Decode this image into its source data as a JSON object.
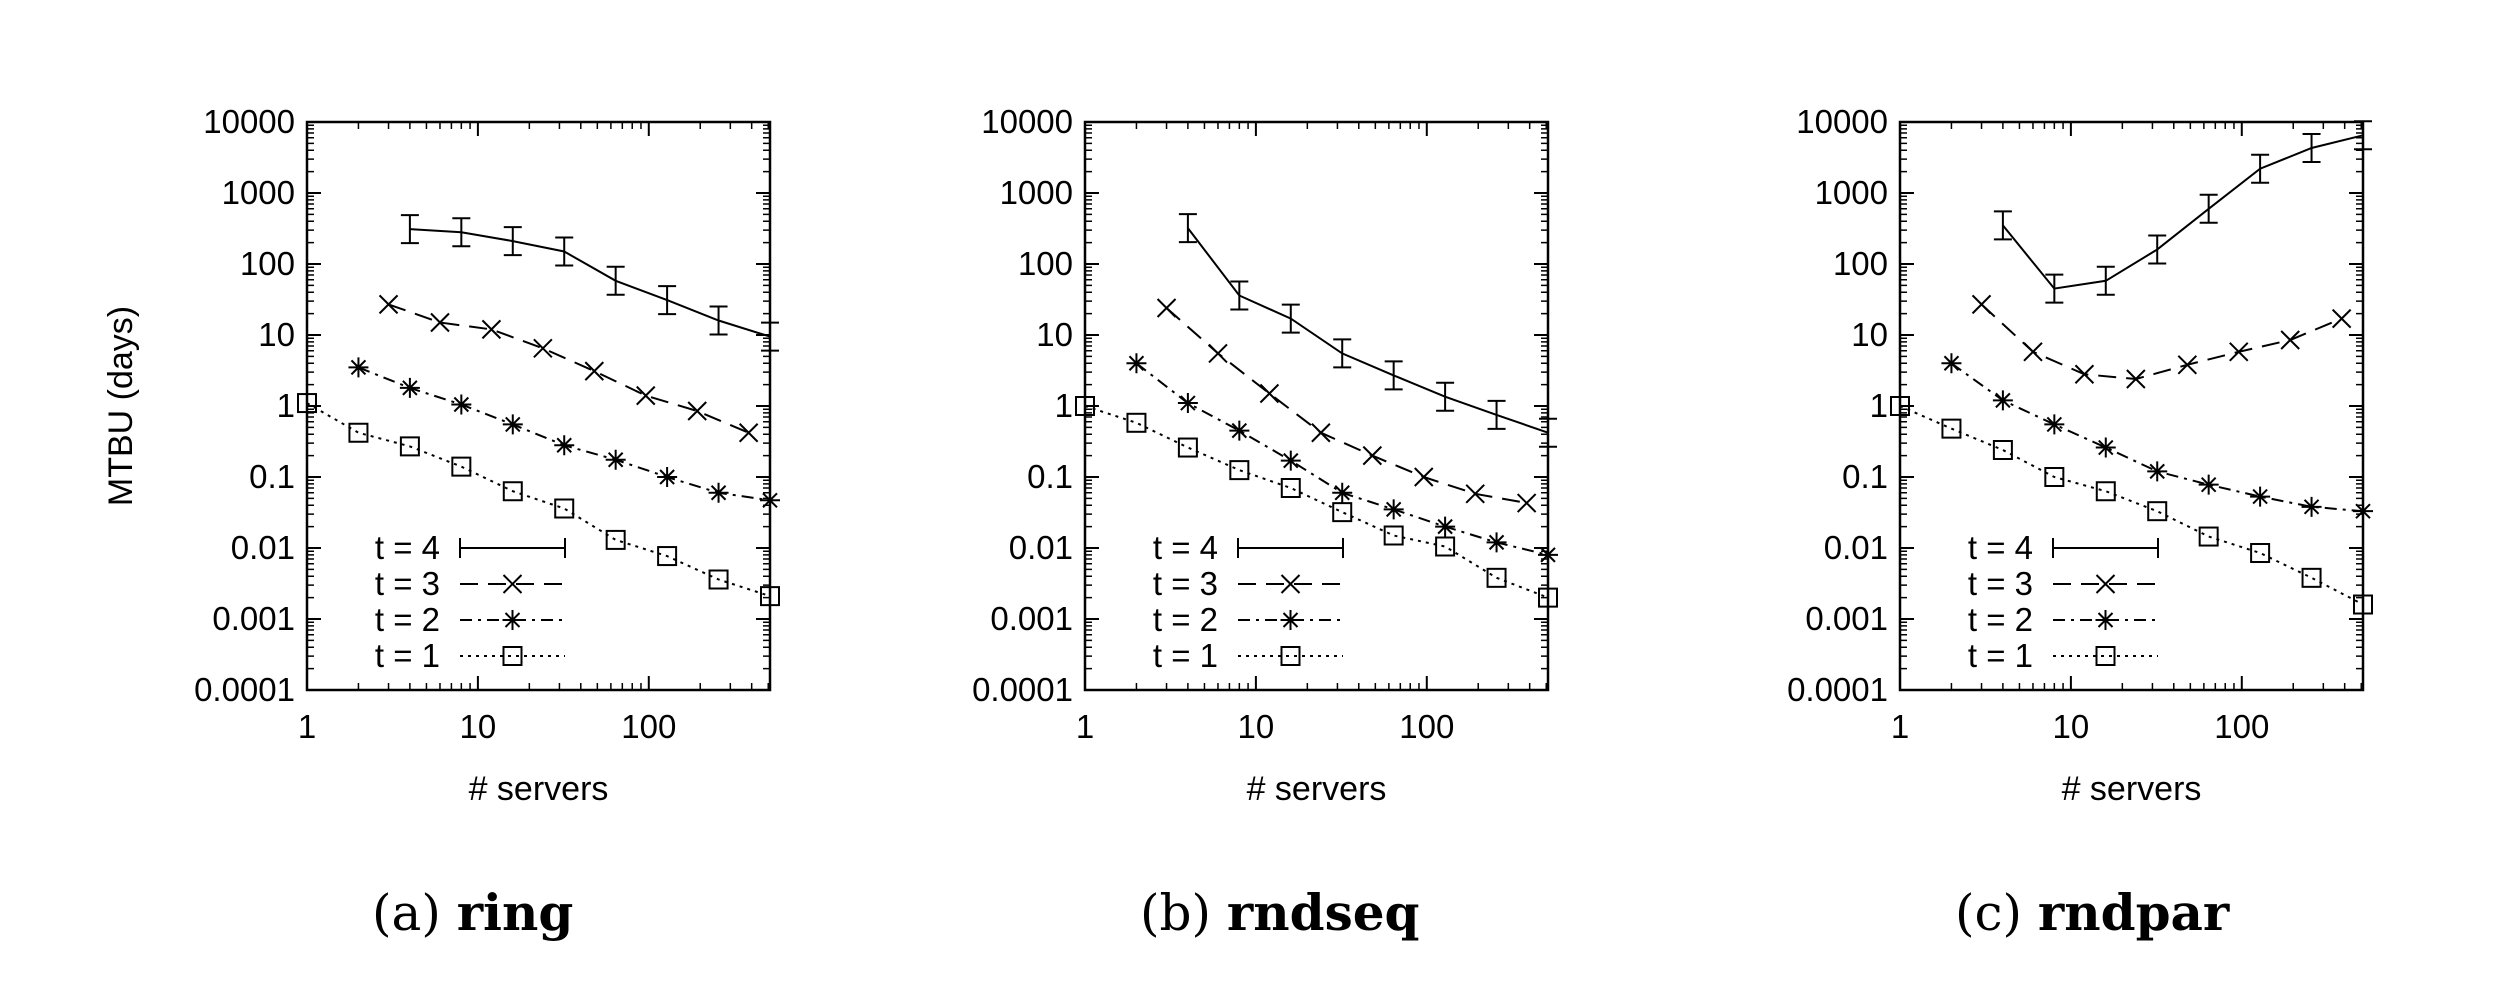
{
  "chart_data": [
    {
      "type": "line",
      "caption_label": "(a)",
      "caption_name": "ring",
      "xlabel": "# servers",
      "ylabel": "MTBU (days)",
      "xscale": "log",
      "yscale": "log",
      "xlim": [
        1,
        512
      ],
      "ylim": [
        0.0001,
        10000
      ],
      "xticks": [
        "1",
        "10",
        "100"
      ],
      "yticks": [
        "0.0001",
        "0.001",
        "0.01",
        "0.1",
        "1",
        "10",
        "100",
        "1000",
        "10000"
      ],
      "legend_placement": "bottom-left",
      "grid": false,
      "series": [
        {
          "name": "t = 4",
          "marker": "plus",
          "dash": "solid",
          "errorbars": true,
          "x": [
            4,
            8,
            16,
            32,
            64,
            128,
            256,
            512
          ],
          "y": [
            310,
            280,
            210,
            150,
            58,
            31,
            16,
            9.5
          ]
        },
        {
          "name": "t = 3",
          "marker": "x",
          "dash": "dashed",
          "errorbars": false,
          "x": [
            3,
            6,
            12,
            24,
            48,
            96,
            192,
            384
          ],
          "y": [
            27,
            15,
            12,
            6.5,
            3.1,
            1.4,
            0.85,
            0.42
          ]
        },
        {
          "name": "t = 2",
          "marker": "star",
          "dash": "dashdot",
          "errorbars": false,
          "x": [
            2,
            4,
            8,
            16,
            32,
            64,
            128,
            256,
            512
          ],
          "y": [
            3.5,
            1.8,
            1.05,
            0.55,
            0.28,
            0.175,
            0.1,
            0.06,
            0.047
          ]
        },
        {
          "name": "t = 1",
          "marker": "square",
          "dash": "dotted",
          "errorbars": false,
          "x": [
            1,
            2,
            4,
            8,
            16,
            32,
            64,
            128,
            256,
            512
          ],
          "y": [
            1.1,
            0.42,
            0.27,
            0.14,
            0.063,
            0.036,
            0.013,
            0.0077,
            0.0036,
            0.0021
          ]
        }
      ]
    },
    {
      "type": "line",
      "caption_label": "(b)",
      "caption_name": "rndseq",
      "xlabel": "# servers",
      "ylabel": "",
      "xscale": "log",
      "yscale": "log",
      "xlim": [
        1,
        512
      ],
      "ylim": [
        0.0001,
        10000
      ],
      "xticks": [
        "1",
        "10",
        "100"
      ],
      "yticks": [
        "0.0001",
        "0.001",
        "0.01",
        "0.1",
        "1",
        "10",
        "100",
        "1000",
        "10000"
      ],
      "legend_placement": "bottom-left",
      "grid": false,
      "series": [
        {
          "name": "t = 4",
          "marker": "plus",
          "dash": "solid",
          "errorbars": true,
          "x": [
            4,
            8,
            16,
            32,
            64,
            128,
            256,
            512
          ],
          "y": [
            320,
            36,
            17,
            5.5,
            2.7,
            1.35,
            0.75,
            0.42
          ]
        },
        {
          "name": "t = 3",
          "marker": "x",
          "dash": "dashed",
          "errorbars": false,
          "x": [
            3,
            6,
            12,
            24,
            48,
            96,
            192,
            384
          ],
          "y": [
            24,
            5.5,
            1.5,
            0.42,
            0.2,
            0.1,
            0.058,
            0.043
          ]
        },
        {
          "name": "t = 2",
          "marker": "star",
          "dash": "dashdot",
          "errorbars": false,
          "x": [
            2,
            4,
            8,
            16,
            32,
            64,
            128,
            256,
            512
          ],
          "y": [
            4,
            1.1,
            0.45,
            0.17,
            0.06,
            0.035,
            0.02,
            0.012,
            0.008
          ]
        },
        {
          "name": "t = 1",
          "marker": "square",
          "dash": "dotted",
          "errorbars": false,
          "x": [
            1,
            2,
            4,
            8,
            16,
            32,
            64,
            128,
            256,
            512
          ],
          "y": [
            1.0,
            0.58,
            0.26,
            0.125,
            0.07,
            0.032,
            0.015,
            0.0105,
            0.0038,
            0.002
          ]
        }
      ]
    },
    {
      "type": "line",
      "caption_label": "(c)",
      "caption_name": "rndpar",
      "xlabel": "# servers",
      "ylabel": "",
      "xscale": "log",
      "yscale": "log",
      "xlim": [
        1,
        512
      ],
      "ylim": [
        0.0001,
        10000
      ],
      "xticks": [
        "1",
        "10",
        "100"
      ],
      "yticks": [
        "0.0001",
        "0.001",
        "0.01",
        "0.1",
        "1",
        "10",
        "100",
        "1000",
        "10000"
      ],
      "legend_placement": "bottom-left",
      "grid": false,
      "series": [
        {
          "name": "t = 4",
          "marker": "plus",
          "dash": "solid",
          "errorbars": true,
          "x": [
            4,
            8,
            16,
            32,
            64,
            128,
            256,
            512
          ],
          "y": [
            350,
            45,
            58,
            160,
            600,
            2200,
            4300,
            6500
          ]
        },
        {
          "name": "t = 3",
          "marker": "x",
          "dash": "dashed",
          "errorbars": false,
          "x": [
            3,
            6,
            12,
            24,
            48,
            96,
            192,
            384
          ],
          "y": [
            27,
            5.8,
            2.8,
            2.4,
            3.8,
            5.8,
            8.5,
            17
          ]
        },
        {
          "name": "t = 2",
          "marker": "star",
          "dash": "dashdot",
          "errorbars": false,
          "x": [
            2,
            4,
            8,
            16,
            32,
            64,
            128,
            256,
            512
          ],
          "y": [
            4,
            1.2,
            0.55,
            0.26,
            0.12,
            0.078,
            0.053,
            0.038,
            0.033
          ]
        },
        {
          "name": "t = 1",
          "marker": "square",
          "dash": "dotted",
          "errorbars": false,
          "x": [
            1,
            2,
            4,
            8,
            16,
            32,
            64,
            128,
            256,
            512
          ],
          "y": [
            1.0,
            0.48,
            0.24,
            0.1,
            0.063,
            0.033,
            0.0145,
            0.0085,
            0.0038,
            0.0016
          ]
        }
      ]
    }
  ]
}
